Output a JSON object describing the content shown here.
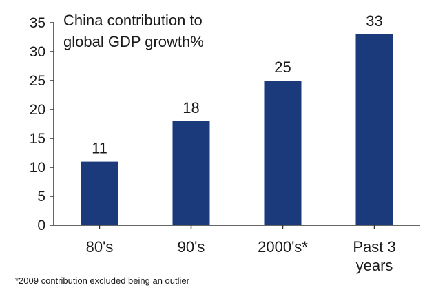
{
  "chart_data": {
    "type": "bar",
    "title_lines": [
      "China contribution to",
      "global GDP growth%"
    ],
    "categories": [
      [
        "80's"
      ],
      [
        "90's"
      ],
      [
        "2000's*"
      ],
      [
        "Past 3",
        "years"
      ]
    ],
    "values": [
      11,
      18,
      25,
      33
    ],
    "data_labels": [
      "11",
      "18",
      "25",
      "33"
    ],
    "yticks": [
      0,
      5,
      10,
      15,
      20,
      25,
      30,
      35
    ],
    "ylim": [
      0,
      35
    ],
    "bar_color": "#1a3a7c",
    "grid": false,
    "footnote": "*2009 contribution excluded being an outlier"
  }
}
